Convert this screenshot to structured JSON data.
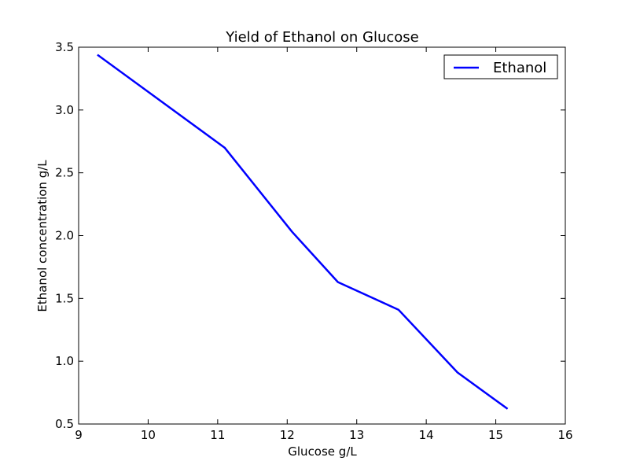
{
  "chart_data": {
    "type": "line",
    "title": "Yield of Ethanol on Glucose",
    "xlabel": "Glucose g/L",
    "ylabel": "Ethanol concentration g/L",
    "xlim": [
      9,
      16
    ],
    "ylim": [
      0.5,
      3.5
    ],
    "xticks": [
      9,
      10,
      11,
      12,
      13,
      14,
      15,
      16
    ],
    "yticks": [
      0.5,
      1.0,
      1.5,
      2.0,
      2.5,
      3.0,
      3.5
    ],
    "xtick_labels": [
      "9",
      "10",
      "11",
      "12",
      "13",
      "14",
      "15",
      "16"
    ],
    "ytick_labels": [
      "0.5",
      "1.0",
      "1.5",
      "2.0",
      "2.5",
      "3.0",
      "3.5"
    ],
    "grid": false,
    "legend_position": "top-right",
    "series": [
      {
        "name": "Ethanol",
        "color": "#0000ff",
        "x": [
          9.27,
          11.1,
          12.07,
          12.73,
          13.6,
          14.45,
          15.17
        ],
        "y": [
          3.44,
          2.7,
          2.03,
          1.63,
          1.41,
          0.91,
          0.62
        ]
      }
    ]
  }
}
